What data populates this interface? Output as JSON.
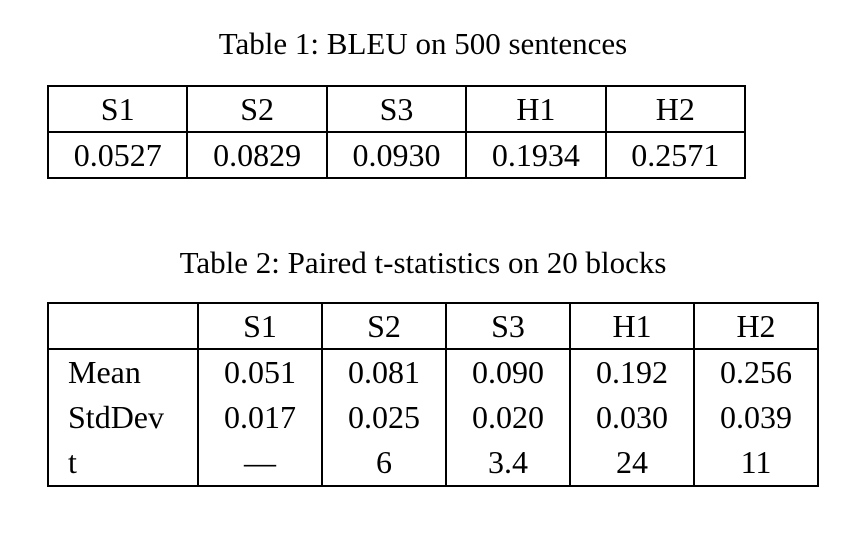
{
  "table1": {
    "caption": "Table 1: BLEU on 500 sentences",
    "headers": [
      "S1",
      "S2",
      "S3",
      "H1",
      "H2"
    ],
    "rows": [
      [
        "0.0527",
        "0.0829",
        "0.0930",
        "0.1934",
        "0.2571"
      ]
    ]
  },
  "table2": {
    "caption": "Table 2: Paired t-statistics on 20 blocks",
    "headers": [
      "S1",
      "S2",
      "S3",
      "H1",
      "H2"
    ],
    "rows": [
      {
        "label": "Mean",
        "values": [
          "0.051",
          "0.081",
          "0.090",
          "0.192",
          "0.256"
        ]
      },
      {
        "label": "StdDev",
        "values": [
          "0.017",
          "0.025",
          "0.020",
          "0.030",
          "0.039"
        ]
      },
      {
        "label": "t",
        "values": [
          "—",
          "6",
          "3.4",
          "24",
          "11"
        ]
      }
    ]
  }
}
